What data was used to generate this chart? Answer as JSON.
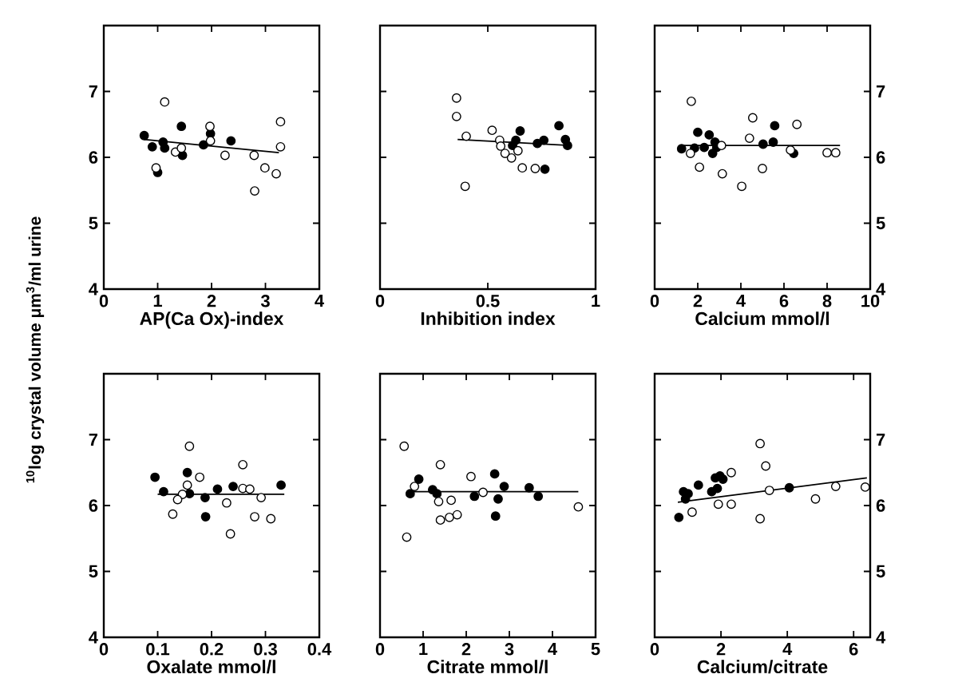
{
  "chart_data": [
    {
      "type": "scatter",
      "xlabel": "AP(Ca Ox)-index",
      "ylabel": "$^{10}$log crystal volume μm$^{3}$/ml urine",
      "xlim": [
        0,
        4
      ],
      "ylim": [
        4,
        8
      ],
      "xticks": [
        0,
        1,
        2,
        3,
        4
      ],
      "yticks": [
        4,
        5,
        6,
        7
      ],
      "marker": "circle",
      "series": [
        {
          "color": "#000000",
          "x": [
            0.75,
            0.9,
            1.0,
            1.1,
            1.13,
            1.44,
            1.46,
            1.85,
            1.98,
            2.36
          ],
          "values": [
            6.33,
            6.16,
            5.77,
            6.23,
            6.14,
            6.47,
            6.03,
            6.19,
            6.36,
            6.25
          ]
        },
        {
          "color": "#ffffff",
          "x": [
            1.13,
            0.97,
            1.33,
            1.44,
            1.97,
            1.98,
            2.25,
            2.79,
            2.8,
            2.99,
            3.2,
            3.28,
            3.28
          ],
          "values": [
            6.84,
            5.84,
            6.08,
            6.14,
            6.47,
            6.25,
            6.03,
            6.03,
            5.49,
            5.84,
            5.75,
            6.54,
            6.16
          ]
        },
        {
          "type": "line",
          "marker": "none",
          "color": "#000000",
          "x": [
            0.75,
            3.25
          ],
          "values": [
            6.27,
            6.07
          ]
        }
      ]
    },
    {
      "type": "scatter",
      "xlabel": "Inhibition index",
      "xlim": [
        0,
        1
      ],
      "ylim": [
        4,
        8
      ],
      "xticks": [
        0,
        0.5,
        1
      ],
      "yticks": [
        4,
        5,
        6,
        7
      ],
      "tick_labels": "x",
      "marker": "circle",
      "series": [
        {
          "color": "#000000",
          "x": [
            0.65,
            0.63,
            0.615,
            0.73,
            0.76,
            0.765,
            0.83,
            0.86,
            0.87
          ],
          "values": [
            6.4,
            6.26,
            6.18,
            6.21,
            6.26,
            5.82,
            6.48,
            6.27,
            6.18
          ]
        },
        {
          "color": "#ffffff",
          "x": [
            0.355,
            0.355,
            0.4,
            0.395,
            0.52,
            0.555,
            0.56,
            0.58,
            0.61,
            0.64,
            0.66,
            0.72
          ],
          "values": [
            6.9,
            6.62,
            6.32,
            5.56,
            6.41,
            6.26,
            6.17,
            6.06,
            5.99,
            6.1,
            5.84,
            5.83
          ]
        },
        {
          "type": "line",
          "marker": "none",
          "color": "#000000",
          "x": [
            0.36,
            0.88
          ],
          "values": [
            6.27,
            6.18
          ]
        }
      ]
    },
    {
      "type": "scatter",
      "xlabel": "Calcium mmol/l",
      "xlim": [
        0,
        10
      ],
      "ylim": [
        4,
        8
      ],
      "xticks": [
        0,
        2,
        4,
        6,
        8,
        10
      ],
      "yticks": [
        4,
        5,
        6,
        7
      ],
      "marker": "circle",
      "series": [
        {
          "color": "#000000",
          "x": [
            1.25,
            2.0,
            1.85,
            2.3,
            2.53,
            2.69,
            2.8,
            2.88,
            5.03,
            5.5,
            5.57,
            6.45
          ],
          "values": [
            6.13,
            6.38,
            6.14,
            6.15,
            6.34,
            6.06,
            6.23,
            6.15,
            6.2,
            6.23,
            6.48,
            6.06
          ]
        },
        {
          "color": "#ffffff",
          "x": [
            1.7,
            1.66,
            2.08,
            3.1,
            3.14,
            4.04,
            4.4,
            4.55,
            5.0,
            6.3,
            6.6,
            8.0,
            8.4
          ],
          "values": [
            6.85,
            6.06,
            5.85,
            6.18,
            5.75,
            5.56,
            6.29,
            6.6,
            5.83,
            6.11,
            6.5,
            6.07,
            6.07
          ]
        },
        {
          "type": "line",
          "marker": "none",
          "color": "#000000",
          "x": [
            1.25,
            8.6
          ],
          "values": [
            6.18,
            6.18
          ]
        }
      ]
    },
    {
      "type": "scatter",
      "xlabel": "Oxalate mmol/l",
      "xlim": [
        0,
        0.4
      ],
      "ylim": [
        4,
        8
      ],
      "xticks": [
        0,
        0.1,
        0.2,
        0.3,
        0.4
      ],
      "yticks": [
        4,
        5,
        6,
        7
      ],
      "marker": "circle",
      "series": [
        {
          "color": "#000000",
          "x": [
            0.095,
            0.111,
            0.155,
            0.159,
            0.188,
            0.189,
            0.211,
            0.24,
            0.329
          ],
          "values": [
            6.43,
            6.21,
            6.5,
            6.18,
            6.12,
            5.83,
            6.25,
            6.29,
            6.31
          ]
        },
        {
          "color": "#ffffff",
          "x": [
            0.159,
            0.155,
            0.178,
            0.146,
            0.137,
            0.128,
            0.228,
            0.235,
            0.258,
            0.258,
            0.271,
            0.292,
            0.28,
            0.31
          ],
          "values": [
            6.9,
            6.31,
            6.43,
            6.17,
            6.09,
            5.87,
            6.04,
            5.57,
            6.62,
            6.26,
            6.25,
            6.12,
            5.83,
            5.8
          ]
        },
        {
          "type": "line",
          "marker": "none",
          "color": "#000000",
          "x": [
            0.1,
            0.335
          ],
          "values": [
            6.17,
            6.17
          ]
        }
      ]
    },
    {
      "type": "scatter",
      "xlabel": "Citrate mmol/l",
      "xlim": [
        0,
        5
      ],
      "ylim": [
        4,
        8
      ],
      "xticks": [
        0,
        1,
        2,
        3,
        4,
        5
      ],
      "yticks": [
        4,
        5,
        6,
        7
      ],
      "tick_labels": "x",
      "marker": "circle",
      "series": [
        {
          "color": "#000000",
          "x": [
            0.7,
            0.9,
            1.22,
            1.32,
            2.19,
            2.66,
            2.68,
            2.74,
            2.88,
            3.46,
            3.67
          ],
          "values": [
            6.18,
            6.4,
            6.24,
            6.18,
            6.14,
            6.48,
            5.84,
            6.1,
            6.29,
            6.27,
            6.14
          ]
        },
        {
          "color": "#ffffff",
          "x": [
            0.56,
            0.62,
            0.8,
            1.4,
            1.36,
            1.4,
            1.65,
            1.61,
            1.79,
            2.11,
            2.39,
            4.6
          ],
          "values": [
            6.9,
            5.52,
            6.29,
            6.62,
            6.06,
            5.78,
            6.08,
            5.82,
            5.86,
            6.44,
            6.2,
            5.98
          ]
        },
        {
          "type": "line",
          "marker": "none",
          "color": "#000000",
          "x": [
            0.65,
            4.6
          ],
          "values": [
            6.21,
            6.21
          ]
        }
      ]
    },
    {
      "type": "scatter",
      "xlabel": "Calcium/citrate",
      "xlim": [
        0,
        6.5
      ],
      "ylim": [
        4,
        8
      ],
      "xticks": [
        0,
        2,
        4,
        6
      ],
      "yticks": [
        4,
        5,
        6,
        7
      ],
      "marker": "circle",
      "series": [
        {
          "color": "#000000",
          "x": [
            0.73,
            0.87,
            0.93,
            1.01,
            1.32,
            1.72,
            1.83,
            1.89,
            1.97,
            2.06,
            4.06
          ],
          "values": [
            5.82,
            6.21,
            6.1,
            6.18,
            6.31,
            6.21,
            6.42,
            6.26,
            6.45,
            6.4,
            6.27
          ]
        },
        {
          "color": "#ffffff",
          "x": [
            1.13,
            1.92,
            2.31,
            2.31,
            3.18,
            3.35,
            3.18,
            3.46,
            4.85,
            5.46,
            6.35
          ],
          "values": [
            5.9,
            6.02,
            6.02,
            6.5,
            6.94,
            6.6,
            5.8,
            6.23,
            6.1,
            6.29,
            6.28
          ]
        },
        {
          "type": "line",
          "marker": "none",
          "color": "#000000",
          "x": [
            0.7,
            6.4
          ],
          "values": [
            6.05,
            6.42
          ]
        }
      ]
    }
  ]
}
